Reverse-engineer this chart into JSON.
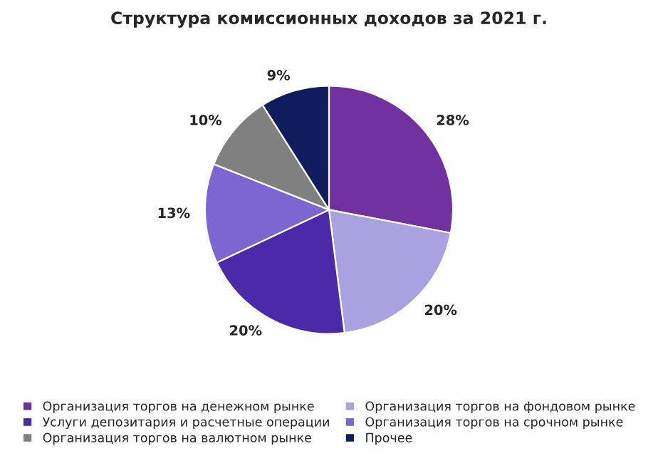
{
  "chart_data": {
    "type": "pie",
    "title": "Структура комиссионных доходов за 2021 г.",
    "categories": [
      "Организация торгов на денежном рынке",
      "Организация торгов на фондовом рынке",
      "Услуги депозитария и расчетные операции",
      "Организация торгов на срочном рынке",
      "Организация торгов на валютном рынке",
      "Прочее"
    ],
    "values": [
      28,
      20,
      20,
      13,
      10,
      9
    ],
    "value_labels": [
      "28%",
      "20%",
      "20%",
      "13%",
      "10%",
      "9%"
    ],
    "colors": [
      "#7030a0",
      "#a9a1e0",
      "#4a2aa8",
      "#7b66d2",
      "#808080",
      "#0f1c5e"
    ],
    "legend": "bottom"
  }
}
